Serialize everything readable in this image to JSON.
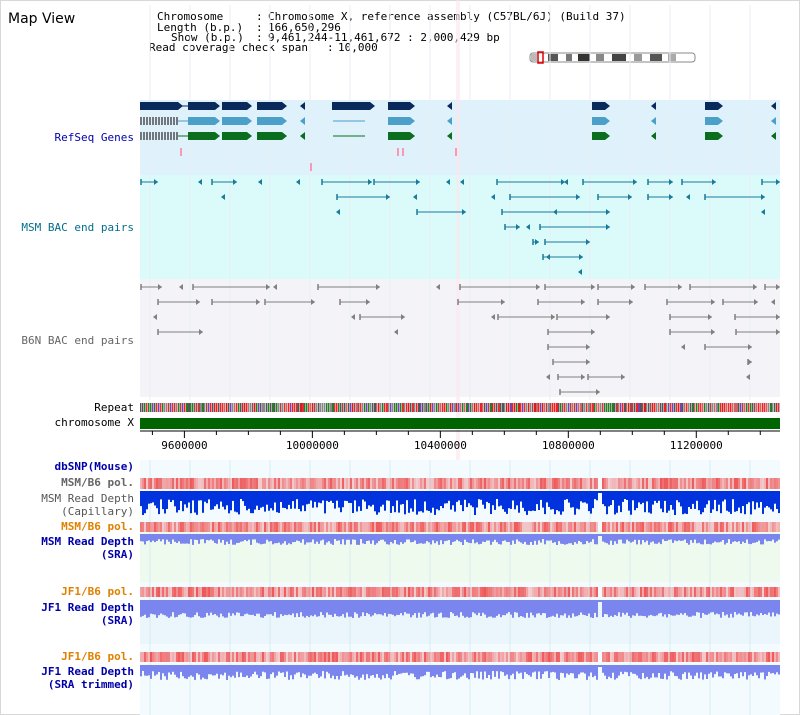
{
  "app": {
    "title": "Map View"
  },
  "info": {
    "lines": [
      {
        "label": "Chromosome",
        "value": "Chromosome X, reference assembly (C57BL/6J) (Build 37)"
      },
      {
        "label": "Length (b.p.)",
        "value": "166,650,296"
      },
      {
        "label": "Show (b.p.)",
        "value": "9,461,244-11,461,672 : 2,000,429 bp"
      },
      {
        "label": "Read coverage check span",
        "value": "10,000"
      }
    ]
  },
  "colors": {
    "track_label": "#0000aa",
    "refseq_bg": "#dff1fb",
    "msm_bac_bg": "#dbfbfb",
    "b6n_bac_bg": "#f4f4f8",
    "snp_bg": "#f0faff",
    "chromosome_bar": "#006400",
    "gene_dark": "#0b2a5c",
    "gene_mid": "#4aa0c8",
    "gene_green": "#0a6e1e",
    "msm_bac": "#1a7a9a",
    "b6n_bac": "#808080",
    "depth_dark": "#0033dd",
    "depth_light": "#7a86ee",
    "pol_red": "#ee4444",
    "orange_label": "#e08000"
  },
  "tracks": {
    "refseq": "RefSeq Genes",
    "msm_bac": "MSM BAC end pairs",
    "b6n_bac": "B6N BAC end pairs",
    "repeat": "Repeat",
    "chromosome": "chromosome X",
    "dbsnp": "dbSNP(Mouse)",
    "msm_pol_1": "MSM/B6 pol.",
    "msm_depth_cap": [
      "MSM Read Depth",
      "(Capillary)"
    ],
    "msm_pol_2": "MSM/B6 pol.",
    "msm_depth_sra": [
      "MSM Read Depth",
      "(SRA)"
    ],
    "jf1_pol_1": "JF1/B6 pol.",
    "jf1_depth_sra": [
      "JF1 Read Depth",
      "(SRA)"
    ],
    "jf1_pol_2": "JF1/B6 pol.",
    "jf1_depth_trim": [
      "JF1 Read Depth",
      "(SRA trimmed)"
    ]
  },
  "axis": {
    "ticks": [
      "9600000",
      "10000000",
      "10400000",
      "10800000",
      "11200000"
    ],
    "tick_values": [
      9600000,
      10000000,
      10400000,
      10800000,
      11200000
    ],
    "start": 9461244,
    "end": 11461672
  }
}
